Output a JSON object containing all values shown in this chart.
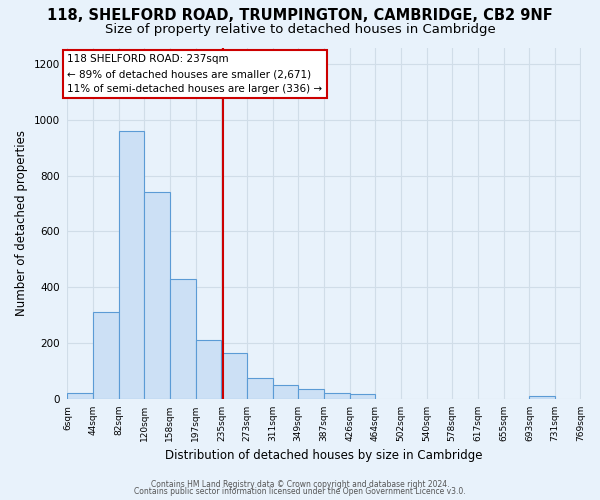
{
  "title1": "118, SHELFORD ROAD, TRUMPINGTON, CAMBRIDGE, CB2 9NF",
  "title2": "Size of property relative to detached houses in Cambridge",
  "xlabel": "Distribution of detached houses by size in Cambridge",
  "ylabel": "Number of detached properties",
  "bin_edges": [
    6,
    44,
    82,
    120,
    158,
    197,
    235,
    273,
    311,
    349,
    387,
    426,
    464,
    502,
    540,
    578,
    617,
    655,
    693,
    731,
    769
  ],
  "bar_heights": [
    20,
    310,
    960,
    740,
    430,
    210,
    165,
    75,
    48,
    35,
    20,
    15,
    0,
    0,
    0,
    0,
    0,
    0,
    10,
    0
  ],
  "bar_color": "#cce0f5",
  "bar_edge_color": "#5b9bd5",
  "vline_x": 237,
  "vline_color": "#cc0000",
  "annotation_title": "118 SHELFORD ROAD: 237sqm",
  "annotation_line1": "← 89% of detached houses are smaller (2,671)",
  "annotation_line2": "11% of semi-detached houses are larger (336) →",
  "annotation_box_fill": "#ffffff",
  "annotation_box_edge": "#cc0000",
  "ylim": [
    0,
    1260
  ],
  "yticks": [
    0,
    200,
    400,
    600,
    800,
    1000,
    1200
  ],
  "footnote1": "Contains HM Land Registry data © Crown copyright and database right 2024.",
  "footnote2": "Contains public sector information licensed under the Open Government Licence v3.0.",
  "bg_color": "#e8f2fb",
  "grid_color": "#d0dde8",
  "title1_fontsize": 10.5,
  "title2_fontsize": 9.5,
  "axis_label_fontsize": 8.5,
  "tick_fontsize": 7.5,
  "footnote_fontsize": 5.5
}
